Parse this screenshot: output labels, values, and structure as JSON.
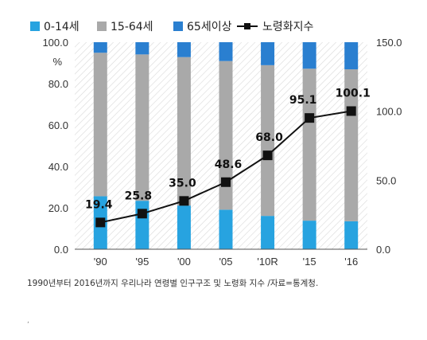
{
  "chart_data": {
    "type": "bar",
    "categories": [
      "'90",
      "'95",
      "'00",
      "'05",
      "'10R",
      "'15",
      "'16"
    ],
    "series": [
      {
        "name": "0-14세",
        "values": [
          25.6,
          23.4,
          21.1,
          19.1,
          16.1,
          13.8,
          13.5
        ],
        "color": "#27a3e0"
      },
      {
        "name": "15-64세",
        "values": [
          69.3,
          70.7,
          71.7,
          71.8,
          72.8,
          73.4,
          73.4
        ],
        "color": "#a9a9a9"
      },
      {
        "name": "65세이상",
        "values": [
          5.1,
          5.9,
          7.2,
          9.1,
          11.1,
          12.8,
          13.1
        ],
        "color": "#2a7fd0"
      }
    ],
    "line": {
      "name": "노령화지수",
      "values": [
        19.4,
        25.8,
        35.0,
        48.6,
        68.0,
        95.1,
        100.1
      ],
      "color": "#111111"
    },
    "labels": [
      "19.4",
      "25.8",
      "35.0",
      "48.6",
      "68.0",
      "95.1",
      "100.1"
    ],
    "y_left": {
      "ticks": [
        "0.0",
        "20.0",
        "40.0",
        "60.0",
        "80.0",
        "100.0"
      ],
      "unit": "%",
      "lim": [
        0,
        100
      ]
    },
    "y_right": {
      "ticks": [
        "0.0",
        "50.0",
        "100.0",
        "150.0"
      ],
      "lim": [
        0,
        150
      ]
    },
    "legend_position": "top",
    "background": "hatched"
  },
  "caption": "1990년부터 2016년까지 우리나라 연령별 인구구조 및 노령화 지수 /자료=통계청.",
  "stray_mark": ","
}
